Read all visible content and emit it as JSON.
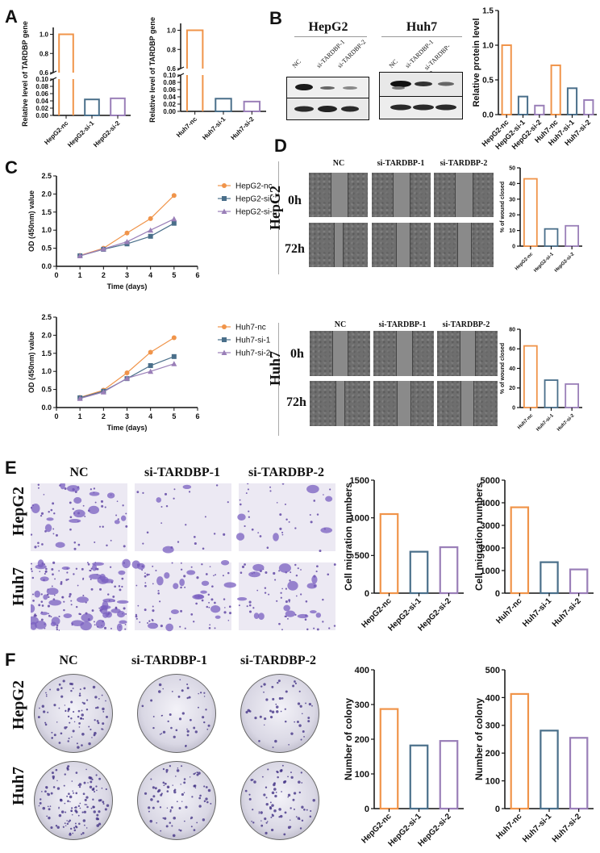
{
  "panels": {
    "A": {
      "label": "A"
    },
    "B": {
      "label": "B",
      "blot_groups": [
        "HepG2",
        "Huh7"
      ],
      "blot_lanes": [
        "NC",
        "si-TARDBP-1",
        "si-TARDBP-2"
      ]
    },
    "C": {
      "label": "C"
    },
    "D": {
      "label": "D",
      "row_labels": [
        "0h",
        "72h"
      ],
      "col_labels": [
        "NC",
        "si-TARDBP-1",
        "si-TARDBP-2"
      ],
      "cell_lines": [
        "HepG2",
        "Huh7"
      ]
    },
    "E": {
      "label": "E",
      "col_labels": [
        "NC",
        "si-TARDBP-1",
        "si-TARDBP-2"
      ],
      "row_labels": [
        "HepG2",
        "Huh7"
      ]
    },
    "F": {
      "label": "F",
      "col_labels": [
        "NC",
        "si-TARDBP-1",
        "si-TARDBP-2"
      ],
      "row_labels": [
        "HepG2",
        "Huh7"
      ]
    }
  },
  "colors": {
    "nc": "#f0944a",
    "si1": "#4a6f8a",
    "si2": "#9a7fb8"
  },
  "chart_data": [
    {
      "id": "A1",
      "type": "bar",
      "title": "",
      "ylabel": "Relative level of TARDBP gene",
      "xlabel": "",
      "categories": [
        "HepG2-nc",
        "HepG2-si-1",
        "HepG2-si-2"
      ],
      "values": [
        1.0,
        0.044,
        0.047
      ],
      "yaxis_break": {
        "lower": [
          0,
          0.1
        ],
        "upper": [
          0.6,
          1.0
        ]
      },
      "lower_ticks": [
        "0.00",
        "0.02",
        "0.04",
        "0.06",
        "0.08",
        "0.10"
      ],
      "upper_ticks": [
        "0.6",
        "0.8",
        "1.0"
      ]
    },
    {
      "id": "A2",
      "type": "bar",
      "title": "",
      "ylabel": "Relative level of TARDBP gene",
      "xlabel": "",
      "categories": [
        "Huh7-nc",
        "Huh7-si-1",
        "Huh7-si-2"
      ],
      "values": [
        1.0,
        0.035,
        0.027
      ],
      "yaxis_break": {
        "lower": [
          0,
          0.1
        ],
        "upper": [
          0.6,
          1.0
        ]
      },
      "lower_ticks": [
        "0.00",
        "0.02",
        "0.04",
        "0.06",
        "0.08",
        "0.10"
      ],
      "upper_ticks": [
        "0.6",
        "0.8",
        "1.0"
      ]
    },
    {
      "id": "B",
      "type": "bar",
      "title": "",
      "ylabel": "Relative protein level",
      "xlabel": "",
      "categories": [
        "HepG2-nc",
        "HepG2-si-1",
        "HepG2-si-2",
        "Huh7-nc",
        "Huh7-si-1",
        "Huh7-si-2"
      ],
      "values": [
        1.0,
        0.26,
        0.13,
        0.71,
        0.38,
        0.21
      ],
      "ylim": [
        0,
        1.5
      ],
      "yticks": [
        "0.0",
        "0.5",
        "1.0",
        "1.5"
      ]
    },
    {
      "id": "C1",
      "type": "line",
      "title": "",
      "xlabel": "Time (days)",
      "ylabel": "OD (450nm) value",
      "x": [
        1,
        2,
        3,
        4,
        5
      ],
      "xlim": [
        0,
        6
      ],
      "ylim": [
        0,
        2.5
      ],
      "xticks": [
        "0",
        "1",
        "2",
        "3",
        "4",
        "5",
        "6"
      ],
      "yticks": [
        "0.0",
        "0.5",
        "1.0",
        "1.5",
        "2.0",
        "2.5"
      ],
      "series": [
        {
          "name": "HepG2-nc",
          "marker": "circle",
          "values": [
            0.3,
            0.5,
            0.92,
            1.32,
            1.96
          ]
        },
        {
          "name": "HepG2-si-1",
          "marker": "square",
          "values": [
            0.29,
            0.47,
            0.62,
            0.83,
            1.19
          ]
        },
        {
          "name": "HepG2-si-2",
          "marker": "triangle",
          "values": [
            0.29,
            0.48,
            0.68,
            1.0,
            1.31
          ]
        }
      ],
      "legend_position": "right"
    },
    {
      "id": "C2",
      "type": "line",
      "title": "",
      "xlabel": "Time (days)",
      "ylabel": "OD (450nm) value",
      "x": [
        1,
        2,
        3,
        4,
        5
      ],
      "xlim": [
        0,
        6
      ],
      "ylim": [
        0,
        2.5
      ],
      "xticks": [
        "0",
        "1",
        "2",
        "3",
        "4",
        "5",
        "6"
      ],
      "yticks": [
        "0.0",
        "0.5",
        "1.0",
        "1.5",
        "2.0",
        "2.5"
      ],
      "series": [
        {
          "name": "Huh7-nc",
          "marker": "circle",
          "values": [
            0.28,
            0.48,
            0.96,
            1.53,
            1.93
          ]
        },
        {
          "name": "Huh7-si-1",
          "marker": "square",
          "values": [
            0.27,
            0.45,
            0.8,
            1.16,
            1.41
          ]
        },
        {
          "name": "Huh7-si-2",
          "marker": "triangle",
          "values": [
            0.25,
            0.43,
            0.81,
            1.0,
            1.21
          ]
        }
      ],
      "legend_position": "right"
    },
    {
      "id": "D1",
      "type": "bar",
      "title": "",
      "ylabel": "% of wound closed",
      "xlabel": "",
      "categories": [
        "HepG2-nc",
        "HepG2-si-1",
        "HepG2-si-2"
      ],
      "values": [
        43,
        11,
        13
      ],
      "ylim": [
        0,
        50
      ],
      "yticks": [
        "0",
        "10",
        "20",
        "30",
        "40",
        "50"
      ]
    },
    {
      "id": "D2",
      "type": "bar",
      "title": "",
      "ylabel": "% of wound closed",
      "xlabel": "",
      "categories": [
        "Huh7-nc",
        "Huh7-si-1",
        "Huh7-si-2"
      ],
      "values": [
        63,
        28,
        24
      ],
      "ylim": [
        0,
        80
      ],
      "yticks": [
        "0",
        "20",
        "40",
        "60",
        "80"
      ]
    },
    {
      "id": "E1",
      "type": "bar",
      "title": "",
      "ylabel": "Cell migration numbers",
      "xlabel": "",
      "categories": [
        "HepG2-nc",
        "HepG2-si-1",
        "HepG2-si-2"
      ],
      "values": [
        1050,
        550,
        610
      ],
      "ylim": [
        0,
        1500
      ],
      "yticks": [
        "0",
        "500",
        "1000",
        "1500"
      ]
    },
    {
      "id": "E2",
      "type": "bar",
      "title": "",
      "ylabel": "Cell migration numbers",
      "xlabel": "",
      "categories": [
        "Huh7-nc",
        "Huh7-si-1",
        "Huh7-si-2"
      ],
      "values": [
        3800,
        1370,
        1050
      ],
      "ylim": [
        0,
        5000
      ],
      "yticks": [
        "0",
        "1000",
        "2000",
        "3000",
        "4000",
        "5000"
      ]
    },
    {
      "id": "F1",
      "type": "bar",
      "title": "",
      "ylabel": "Number of colony",
      "xlabel": "",
      "categories": [
        "HepG2-nc",
        "HepG2-si-1",
        "HepG2-si-2"
      ],
      "values": [
        287,
        182,
        195
      ],
      "ylim": [
        0,
        400
      ],
      "yticks": [
        "0",
        "100",
        "200",
        "300",
        "400"
      ]
    },
    {
      "id": "F2",
      "type": "bar",
      "title": "",
      "ylabel": "Number of colony",
      "xlabel": "",
      "categories": [
        "Huh7-nc",
        "Huh7-si-1",
        "Huh7-si-2"
      ],
      "values": [
        413,
        281,
        255
      ],
      "ylim": [
        0,
        500
      ],
      "yticks": [
        "0",
        "100",
        "200",
        "300",
        "400",
        "500"
      ]
    }
  ]
}
